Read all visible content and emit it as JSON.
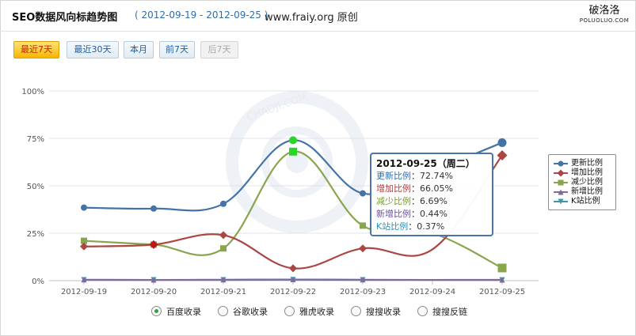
{
  "header": {
    "title": "SEO数据风向标趋势图",
    "date_range": "( 2012-09-19 - 2012-09-25 )",
    "site": "www.fraiy.org 原创",
    "brand_cn": "破洛洛",
    "brand_en": "POLUOLUO.COM"
  },
  "range_buttons": [
    {
      "label": "最近7天",
      "state": "active"
    },
    {
      "label": "最近30天",
      "state": "normal"
    },
    {
      "label": "本月",
      "state": "normal"
    },
    {
      "label": "前7天",
      "state": "normal"
    },
    {
      "label": "后7天",
      "state": "disabled"
    }
  ],
  "watermark_text": "CHAOJI.COM",
  "tooltip": {
    "date": "2012-09-25（周二）",
    "rows": [
      {
        "label": "更新比例",
        "value": "72.74%",
        "color": "#2e6eb2"
      },
      {
        "label": "增加比例",
        "value": "66.05%",
        "color": "#b03a3a"
      },
      {
        "label": "减少比例",
        "value": "6.69%",
        "color": "#7b9a2e"
      },
      {
        "label": "新增比例",
        "value": "0.44%",
        "color": "#6b4f9e"
      },
      {
        "label": "K站比例",
        "value": "0.37%",
        "color": "#2e8fb0"
      }
    ]
  },
  "data_sources": [
    {
      "label": "百度收录",
      "checked": true
    },
    {
      "label": "谷歌收录",
      "checked": false
    },
    {
      "label": "雅虎收录",
      "checked": false
    },
    {
      "label": "搜搜收录",
      "checked": false
    },
    {
      "label": "搜搜反链",
      "checked": false
    }
  ],
  "chart_data": {
    "type": "line",
    "categories": [
      "2012-09-19",
      "2012-09-20",
      "2012-09-21",
      "2012-09-22",
      "2012-09-23",
      "2012-09-24",
      "2012-09-25"
    ],
    "y_ticks": [
      "0%",
      "25%",
      "50%",
      "75%",
      "100%"
    ],
    "ylim": [
      0,
      100
    ],
    "grid": true,
    "legend_position": "right",
    "highlight_categories": [
      "2012-09-22",
      "2012-09-25"
    ],
    "series": [
      {
        "name": "更新比例",
        "color": "#4572a7",
        "marker": "circle",
        "values": [
          38.5,
          38,
          40.5,
          74,
          46,
          58,
          72.74
        ]
      },
      {
        "name": "增加比例",
        "color": "#aa4643",
        "marker": "diamond",
        "values": [
          18,
          19,
          24,
          6.5,
          17,
          16.5,
          66.05
        ]
      },
      {
        "name": "减少比例",
        "color": "#89a54e",
        "marker": "square",
        "values": [
          21,
          19,
          17,
          68,
          29,
          25,
          6.69
        ]
      },
      {
        "name": "新增比例",
        "color": "#80699b",
        "marker": "triangle",
        "values": [
          0.5,
          0.4,
          0.5,
          0.6,
          0.5,
          0.4,
          0.44
        ]
      },
      {
        "name": "K站比例",
        "color": "#3d96ae",
        "marker": "triangle-down",
        "values": [
          0.4,
          0.4,
          0.4,
          0.5,
          0.4,
          0.4,
          0.37
        ]
      }
    ]
  }
}
